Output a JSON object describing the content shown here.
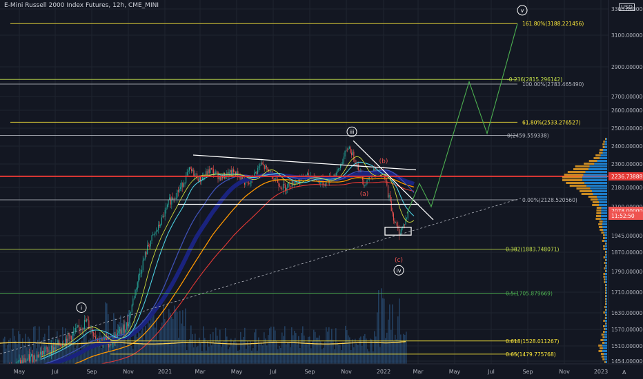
{
  "chart_title": "E-Mini Russell 2000 Index Futures, 12h, CME_MINI",
  "price_axis": {
    "currency": "USD",
    "scale_button": "A",
    "ticks": [
      {
        "label": "3300.000000",
        "v": 3300
      },
      {
        "label": "3100.000000",
        "v": 3100
      },
      {
        "label": "2900.000000",
        "v": 2900
      },
      {
        "label": "2700.000000",
        "v": 2700
      },
      {
        "label": "2600.000000",
        "v": 2600
      },
      {
        "label": "2500.000000",
        "v": 2500
      },
      {
        "label": "2400.000000",
        "v": 2400
      },
      {
        "label": "2300.000000",
        "v": 2300
      },
      {
        "label": "2180.000000",
        "v": 2180
      },
      {
        "label": "2100.000000",
        "v": 2100
      },
      {
        "label": "1945.000000",
        "v": 1945
      },
      {
        "label": "1870.000000",
        "v": 1870
      },
      {
        "label": "1790.000000",
        "v": 1790
      },
      {
        "label": "1710.000000",
        "v": 1710
      },
      {
        "label": "1630.000000",
        "v": 1630
      },
      {
        "label": "1570.000000",
        "v": 1570
      },
      {
        "label": "1510.000000",
        "v": 1510
      },
      {
        "label": "1454.000000",
        "v": 1454
      }
    ],
    "price_labels": [
      {
        "text": "2236.738889",
        "v": 2236.74,
        "color": "#e53935"
      },
      {
        "text": "2078.000000",
        "v": 2078,
        "color": "#ef5350"
      },
      {
        "text": "11:52:50",
        "v": 2052,
        "color": "#ef5350"
      }
    ]
  },
  "time_axis": [
    {
      "label": "May",
      "x": 28
    },
    {
      "label": "Jul",
      "x": 80
    },
    {
      "label": "Sep",
      "x": 133
    },
    {
      "label": "Nov",
      "x": 186
    },
    {
      "label": "2021",
      "x": 239
    },
    {
      "label": "Mar",
      "x": 290
    },
    {
      "label": "May",
      "x": 343
    },
    {
      "label": "Jul",
      "x": 396
    },
    {
      "label": "Sep",
      "x": 449
    },
    {
      "label": "Nov",
      "x": 502
    },
    {
      "label": "2022",
      "x": 556
    },
    {
      "label": "Mar",
      "x": 606
    },
    {
      "label": "May",
      "x": 659
    },
    {
      "label": "Jul",
      "x": 712
    },
    {
      "label": "Sep",
      "x": 765
    },
    {
      "label": "Nov",
      "x": 818
    },
    {
      "label": "2023",
      "x": 871
    }
  ],
  "fib_levels": [
    {
      "text": "161.80%(3188.221456)",
      "v": 3188.22,
      "color": "#ffeb3b"
    },
    {
      "text": "-0.236(2815.296142)",
      "v": 2815.3,
      "color": "#c6e24a"
    },
    {
      "text": "100.00%(2783.465490)",
      "v": 2783.47,
      "color": "#b2b5be"
    },
    {
      "text": "61.80%(2533.276527)",
      "v": 2533.28,
      "color": "#ffeb3b"
    },
    {
      "text": "0(2459.559338)",
      "v": 2459.56,
      "color": "#b2b5be"
    },
    {
      "text": "0.00%(2128.520560)",
      "v": 2128.52,
      "color": "#b2b5be"
    },
    {
      "text": "0.382(1883.748071)",
      "v": 1883.75,
      "color": "#c6e24a"
    },
    {
      "text": "0.5(1705.879669)",
      "v": 1705.88,
      "color": "#4caf50"
    },
    {
      "text": "0.618(1528.011267)",
      "v": 1528.01,
      "color": "#ffeb3b"
    },
    {
      "text": "0.65(1479.775768)",
      "v": 1479.78,
      "color": "#ffeb3b"
    }
  ],
  "wave_labels": [
    {
      "text": "i",
      "x": 118,
      "v": 1650,
      "circled": true,
      "color": "#ffffff"
    },
    {
      "text": "iii",
      "x": 510,
      "v": 2480,
      "circled": true,
      "color": "#ffffff"
    },
    {
      "text": "iv",
      "x": 578,
      "v": 1795,
      "circled": true,
      "color": "#ffffff"
    },
    {
      "text": "v",
      "x": 757,
      "v": 3290,
      "circled": true,
      "color": "#ffffff"
    },
    {
      "text": "(b)",
      "x": 556,
      "v": 2318,
      "circled": false,
      "color": "#ef5350"
    },
    {
      "text": "(a)",
      "x": 528,
      "v": 2155,
      "circled": false,
      "color": "#ef5350"
    },
    {
      "text": "(c)",
      "x": 578,
      "v": 1838,
      "circled": false,
      "color": "#ef5350"
    }
  ],
  "colors": {
    "background": "#131722",
    "grid": "#1f2430",
    "red_line": "#e53935",
    "projection": "#4caf50",
    "trendline": "#ffffff",
    "volume": "#2f5f8f",
    "volume_profile_up": "#2196f3",
    "volume_profile_down": "#f5a623"
  }
}
